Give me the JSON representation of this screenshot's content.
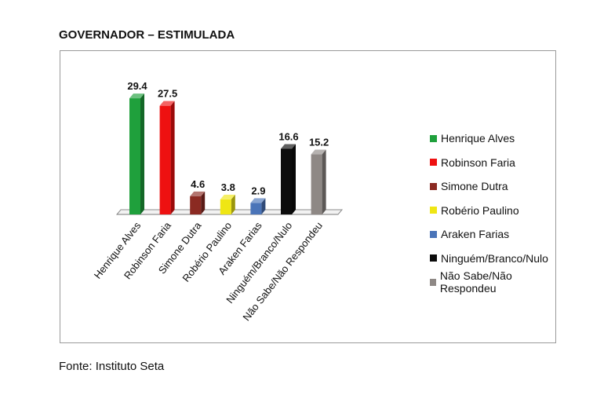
{
  "heading": "GOVERNADOR – ESTIMULADA",
  "source": "Fonte: Instituto Seta",
  "chart_data": {
    "type": "bar",
    "title": "GOVERNADOR – ESTIMULADA",
    "categories": [
      "Henrique Alves",
      "Robinson Faria",
      "Simone Dutra",
      "Robério Paulino",
      "Araken Farias",
      "Ninguém/Branco/Nulo",
      "Não Sabe/Não Respondeu"
    ],
    "values": [
      29.4,
      27.5,
      4.6,
      3.8,
      2.9,
      16.6,
      15.2
    ],
    "value_labels": [
      "29.4",
      "27.5",
      "4.6",
      "3.8",
      "2.9",
      "16.6",
      "15.2"
    ],
    "colors": [
      "#1fa03c",
      "#ee1111",
      "#8b2a22",
      "#efe614",
      "#4a74b8",
      "#0c0c0c",
      "#8e8885"
    ],
    "xlabel": "",
    "ylabel": "",
    "ylim": [
      0,
      30
    ],
    "grid": false,
    "legend_position": "right",
    "legend": [
      "Henrique Alves",
      "Robinson Faria",
      "Simone Dutra",
      "Robério Paulino",
      "Araken Farias",
      "Ninguém/Branco/Nulo",
      "Não Sabe/Não Respondeu"
    ]
  }
}
